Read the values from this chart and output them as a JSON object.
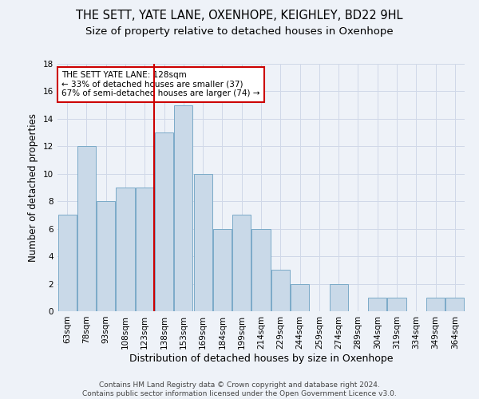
{
  "title": "THE SETT, YATE LANE, OXENHOPE, KEIGHLEY, BD22 9HL",
  "subtitle": "Size of property relative to detached houses in Oxenhope",
  "xlabel": "Distribution of detached houses by size in Oxenhope",
  "ylabel": "Number of detached properties",
  "categories": [
    "63sqm",
    "78sqm",
    "93sqm",
    "108sqm",
    "123sqm",
    "138sqm",
    "153sqm",
    "169sqm",
    "184sqm",
    "199sqm",
    "214sqm",
    "229sqm",
    "244sqm",
    "259sqm",
    "274sqm",
    "289sqm",
    "304sqm",
    "319sqm",
    "334sqm",
    "349sqm",
    "364sqm"
  ],
  "values": [
    7,
    12,
    8,
    9,
    9,
    13,
    15,
    10,
    6,
    7,
    6,
    3,
    2,
    0,
    2,
    0,
    1,
    1,
    0,
    1,
    1
  ],
  "bar_color": "#c9d9e8",
  "bar_edge_color": "#7aaac8",
  "grid_color": "#d0d8e8",
  "background_color": "#eef2f8",
  "annotation_line1": "THE SETT YATE LANE: 128sqm",
  "annotation_line2": "← 33% of detached houses are smaller (37)",
  "annotation_line3": "67% of semi-detached houses are larger (74) →",
  "annotation_box_color": "#ffffff",
  "annotation_box_edge_color": "#cc0000",
  "vline_color": "#cc0000",
  "vline_x_category_index": 4,
  "ylim": [
    0,
    18
  ],
  "yticks": [
    0,
    2,
    4,
    6,
    8,
    10,
    12,
    14,
    16,
    18
  ],
  "footer_line1": "Contains HM Land Registry data © Crown copyright and database right 2024.",
  "footer_line2": "Contains public sector information licensed under the Open Government Licence v3.0.",
  "title_fontsize": 10.5,
  "subtitle_fontsize": 9.5,
  "xlabel_fontsize": 9,
  "ylabel_fontsize": 8.5,
  "tick_fontsize": 7.5,
  "annotation_fontsize": 7.5,
  "footer_fontsize": 6.5
}
